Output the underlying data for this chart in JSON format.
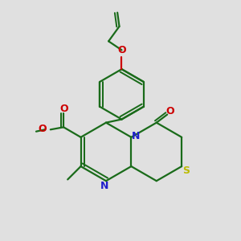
{
  "bg_color": "#e0e0e0",
  "line_color": "#1a6b1a",
  "N_color": "#2020cc",
  "S_color": "#bbbb00",
  "O_color": "#cc0000",
  "line_width": 1.6,
  "fig_size": [
    3.0,
    3.0
  ],
  "dpi": 100,
  "xlim": [
    0,
    10
  ],
  "ylim": [
    0,
    10
  ]
}
